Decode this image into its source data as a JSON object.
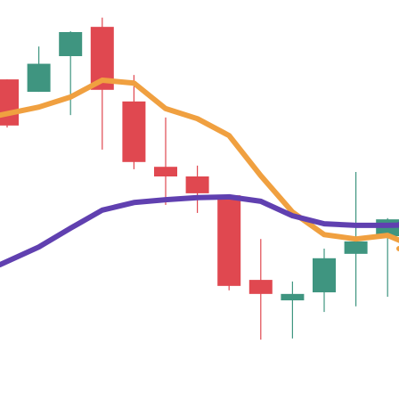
{
  "chart_data": {
    "type": "candlestick",
    "title": "",
    "xlabel": "",
    "ylabel": "",
    "ylim": [
      0,
      100
    ],
    "grid": false,
    "legend": "none",
    "colors": {
      "up": "#3f9580",
      "down": "#e04850",
      "ma_short": "#f0a040",
      "ma_long": "#6040b0"
    },
    "candles": [
      {
        "index": 0,
        "open": 80.2,
        "high": 80.2,
        "low": 68.2,
        "close": 68.7
      },
      {
        "index": 1,
        "open": 77.1,
        "high": 88.4,
        "low": 77.1,
        "close": 84.1
      },
      {
        "index": 2,
        "open": 86.0,
        "high": 92.2,
        "low": 71.3,
        "close": 92.0
      },
      {
        "index": 3,
        "open": 93.3,
        "high": 95.6,
        "low": 62.7,
        "close": 77.6
      },
      {
        "index": 4,
        "open": 74.7,
        "high": 81.3,
        "low": 57.8,
        "close": 59.6
      },
      {
        "index": 5,
        "open": 58.4,
        "high": 70.7,
        "low": 48.9,
        "close": 56.0
      },
      {
        "index": 6,
        "open": 56.0,
        "high": 58.7,
        "low": 46.9,
        "close": 51.8
      },
      {
        "index": 7,
        "open": 51.3,
        "high": 51.3,
        "low": 27.6,
        "close": 28.7
      },
      {
        "index": 8,
        "open": 30.2,
        "high": 40.4,
        "low": 15.3,
        "close": 26.7
      },
      {
        "index": 9,
        "open": 25.1,
        "high": 29.8,
        "low": 15.6,
        "close": 26.7
      },
      {
        "index": 10,
        "open": 27.1,
        "high": 38.0,
        "low": 22.2,
        "close": 35.6
      },
      {
        "index": 11,
        "open": 36.7,
        "high": 57.1,
        "low": 23.6,
        "close": 39.8
      },
      {
        "index": 12,
        "open": 41.1,
        "high": 45.6,
        "low": 26.0,
        "close": 45.3
      }
    ],
    "series": [
      {
        "values": [
          71.3,
          73.3,
          75.8,
          80.0,
          79.3,
          72.9,
          70.4,
          66.2,
          56.2,
          47.1,
          41.5,
          40.4,
          41.3,
          38.0
        ]
      },
      {
        "values": [
          34.0,
          38.4,
          43.1,
          47.6,
          49.5,
          50.2,
          50.7,
          50.9,
          49.8,
          46.2,
          44.2,
          43.8,
          43.8,
          44.0
        ]
      }
    ]
  }
}
